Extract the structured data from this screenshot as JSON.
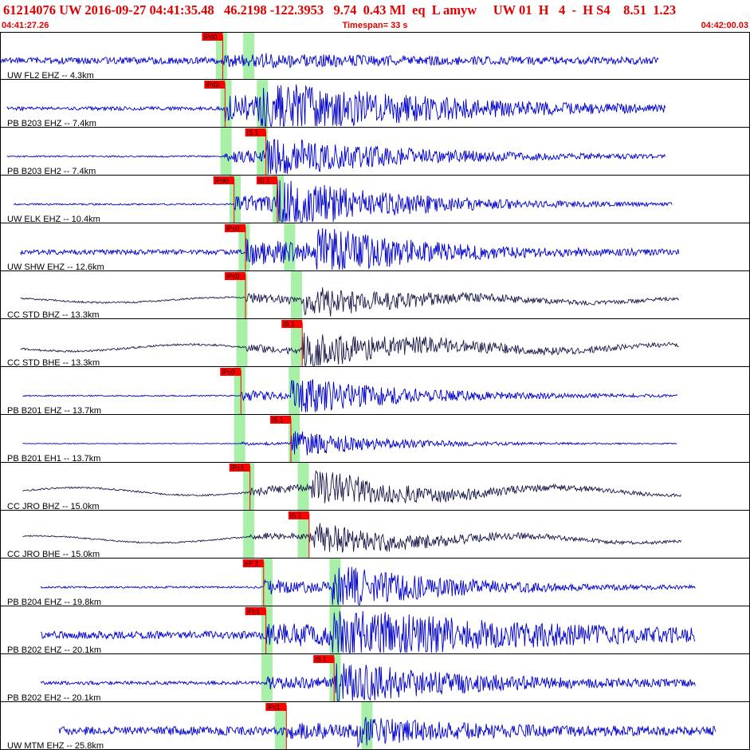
{
  "header": {
    "event_line": "61214076 UW 2016-09-27 04:41:35.48   46.2198 -122.3953   9.74  0.43 Ml  eq  L amyw     UW 01  H   4  -  H S4    8.51  1.23",
    "start_time": "04:41:27.26",
    "timespan": "Timespan=  33 s",
    "end_time": "04:42:00.03"
  },
  "colors": {
    "header_text": "#e00000",
    "trace_blue": "#0000cc",
    "trace_dark": "#1a1a4a",
    "pick_flag": "#ff0000",
    "pick_window": "#a8f0a8"
  },
  "chart_data": {
    "type": "line",
    "title": "",
    "xlabel": "",
    "ylabel": "",
    "x_unit": "seconds after 04:41:27.26",
    "xlim": [
      0,
      33
    ],
    "traces": [
      {
        "label": "UW FL2 EHZ -- 4.3km",
        "color": "blue",
        "data_start": 0.0,
        "data_end": 29.0,
        "amp": 7,
        "noise": 0.6,
        "p_arrival": 9.8,
        "s_arrival": 11.2,
        "p_amp": 0.6,
        "s_amp": 0.35,
        "decay": 6,
        "long_period": 0,
        "picks": [
          {
            "label": "iPd0",
            "t": 9.8
          }
        ],
        "windows": [
          9.5,
          10.7
        ]
      },
      {
        "label": "PB B203 EHZ -- 7.4km",
        "color": "blue",
        "data_start": 0.3,
        "data_end": 29.3,
        "amp": 22,
        "noise": 0.1,
        "p_arrival": 9.9,
        "s_arrival": 11.4,
        "p_amp": 0.75,
        "s_amp": 1.0,
        "decay": 7,
        "long_period": 0,
        "picks": [
          {
            "label": "iPd0",
            "t": 9.9
          }
        ],
        "windows": [
          9.7,
          11.3
        ]
      },
      {
        "label": "PB B203 EH2 -- 7.4km",
        "color": "blue",
        "data_start": 0.3,
        "data_end": 29.3,
        "amp": 20,
        "noise": 0.05,
        "p_arrival": 9.9,
        "s_arrival": 11.7,
        "p_amp": 0.4,
        "s_amp": 1.0,
        "decay": 6,
        "long_period": 0,
        "picks": [
          {
            "label": "iS 1",
            "t": 11.7
          }
        ],
        "windows": [
          9.7,
          11.3
        ]
      },
      {
        "label": "UW ELK EHZ -- 10.4km",
        "color": "blue",
        "data_start": 0.6,
        "data_end": 29.6,
        "amp": 26,
        "noise": 0.04,
        "p_arrival": 10.3,
        "s_arrival": 12.2,
        "p_amp": 0.45,
        "s_amp": 1.0,
        "decay": 5,
        "long_period": 0,
        "picks": [
          {
            "label": "iPd0",
            "t": 10.3
          },
          {
            "label": "iS 1",
            "t": 12.2
          }
        ],
        "windows": [
          10.1,
          12.0
        ]
      },
      {
        "label": "UW SHW EHZ -- 12.6km",
        "color": "blue",
        "data_start": 0.9,
        "data_end": 29.9,
        "amp": 26,
        "noise": 0.12,
        "p_arrival": 10.8,
        "s_arrival": 13.9,
        "p_amp": 0.6,
        "s_amp": 1.0,
        "decay": 4,
        "long_period": 0,
        "picks": [
          {
            "label": "iPc0",
            "t": 10.8
          }
        ],
        "windows": [
          10.5,
          12.5
        ]
      },
      {
        "label": "CC STD BHZ -- 13.3km",
        "color": "dark",
        "data_start": 0.9,
        "data_end": 29.9,
        "amp": 18,
        "noise": 0.06,
        "p_arrival": 10.8,
        "s_arrival": 13.3,
        "p_amp": 0.3,
        "s_amp": 1.0,
        "decay": 5,
        "long_period": 0.3,
        "picks": [
          {
            "label": "iPc0",
            "t": 10.8
          }
        ],
        "windows": [
          10.4,
          12.8
        ]
      },
      {
        "label": "CC STD BHE -- 13.3km",
        "color": "dark",
        "data_start": 0.9,
        "data_end": 29.9,
        "amp": 20,
        "noise": 0.06,
        "p_arrival": 10.8,
        "s_arrival": 13.3,
        "p_amp": 0.2,
        "s_amp": 1.0,
        "decay": 6,
        "long_period": 0.35,
        "picks": [
          {
            "label": "iS 1",
            "t": 13.3
          }
        ],
        "windows": [
          10.4,
          12.8
        ]
      },
      {
        "label": "PB B201 EHZ -- 13.7km",
        "color": "blue",
        "data_start": 1.0,
        "data_end": 29.8,
        "amp": 20,
        "noise": 0.04,
        "p_arrival": 10.6,
        "s_arrival": 12.8,
        "p_amp": 0.3,
        "s_amp": 1.0,
        "decay": 5,
        "long_period": 0,
        "picks": [
          {
            "label": "iPc0",
            "t": 10.6
          }
        ],
        "windows": [
          10.3,
          12.7
        ]
      },
      {
        "label": "PB B201 EH1 -- 13.7km",
        "color": "blue",
        "data_start": 1.0,
        "data_end": 29.8,
        "amp": 16,
        "noise": 0.03,
        "p_arrival": 10.6,
        "s_arrival": 12.8,
        "p_amp": 0.1,
        "s_amp": 1.0,
        "decay": 4,
        "long_period": 0,
        "picks": [
          {
            "label": "iS 1",
            "t": 12.8
          }
        ],
        "windows": [
          10.3,
          12.7
        ]
      },
      {
        "label": "CC JRO BHZ -- 15.0km",
        "color": "dark",
        "data_start": 1.0,
        "data_end": 30.0,
        "amp": 20,
        "noise": 0.05,
        "p_arrival": 11.0,
        "s_arrival": 13.7,
        "p_amp": 0.25,
        "s_amp": 1.0,
        "decay": 5,
        "long_period": 0.4,
        "picks": [
          {
            "label": "iPc1",
            "t": 11.0
          }
        ],
        "windows": [
          10.7,
          13.1
        ]
      },
      {
        "label": "CC JRO BHE -- 15.0km",
        "color": "dark",
        "data_start": 1.0,
        "data_end": 30.0,
        "amp": 18,
        "noise": 0.05,
        "p_arrival": 11.0,
        "s_arrival": 13.6,
        "p_amp": 0.2,
        "s_amp": 1.0,
        "decay": 5,
        "long_period": 0.4,
        "picks": [
          {
            "label": "iS 1",
            "t": 13.6
          }
        ],
        "windows": [
          10.7,
          13.1
        ]
      },
      {
        "label": "PB B204 EHZ -- 19.8km",
        "color": "blue",
        "data_start": 1.8,
        "data_end": 30.6,
        "amp": 24,
        "noise": 0.05,
        "p_arrival": 11.6,
        "s_arrival": 14.6,
        "p_amp": 0.35,
        "s_amp": 1.0,
        "decay": 5,
        "long_period": 0,
        "picks": [
          {
            "label": "eP 2",
            "t": 11.6
          }
        ],
        "windows": [
          11.5,
          14.5
        ]
      },
      {
        "label": "PB B202 EHZ -- 20.1km",
        "color": "blue",
        "data_start": 1.8,
        "data_end": 30.6,
        "amp": 24,
        "noise": 0.2,
        "p_arrival": 11.7,
        "s_arrival": 14.6,
        "p_amp": 0.45,
        "s_amp": 1.0,
        "decay": 8,
        "long_period": 0,
        "picks": [
          {
            "label": "iPc1",
            "t": 11.7
          }
        ],
        "windows": [
          11.5,
          14.5
        ]
      },
      {
        "label": "PB B202 EH2 -- 20.1km",
        "color": "blue",
        "data_start": 1.8,
        "data_end": 30.6,
        "amp": 22,
        "noise": 0.1,
        "p_arrival": 11.7,
        "s_arrival": 14.7,
        "p_amp": 0.3,
        "s_amp": 1.0,
        "decay": 6,
        "long_period": 0,
        "picks": [
          {
            "label": "iS 1",
            "t": 14.7
          }
        ],
        "windows": [
          11.5,
          14.5
        ]
      },
      {
        "label": "UW MTM EHZ -- 25.8km",
        "color": "blue",
        "data_start": 2.6,
        "data_end": 31.5,
        "amp": 12,
        "noise": 0.45,
        "p_arrival": 12.6,
        "s_arrival": 15.7,
        "p_amp": 0.5,
        "s_amp": 1.0,
        "decay": 4,
        "long_period": 0,
        "picks": [
          {
            "label": "iPc1",
            "t": 12.6
          }
        ],
        "windows": [
          12.1,
          15.9
        ]
      }
    ]
  }
}
